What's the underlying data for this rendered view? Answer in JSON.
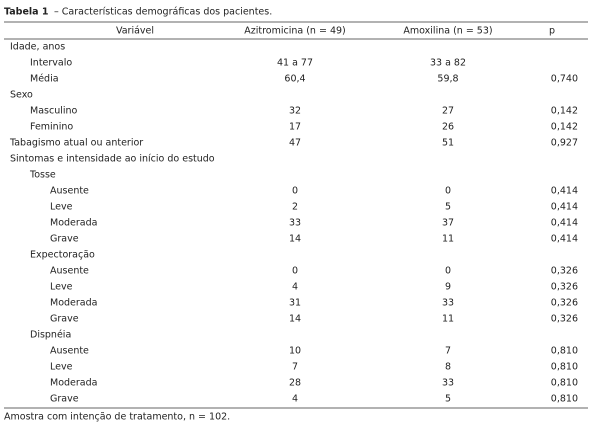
{
  "header": {
    "label": "Tabela 1",
    "title": "– Características demográficas dos pacientes."
  },
  "table": {
    "columns": [
      "Variável",
      "Azitromicina (n = 49)",
      "Amoxilina (n = 53)",
      "p"
    ],
    "rows": [
      {
        "label": "Idade, anos",
        "rows": [
          {
            "label": "Intervalo",
            "cells": [
              "41 a 77",
              "33 a 82",
              null
            ]
          },
          {
            "label": "Média",
            "cells": [
              "60,4",
              "59,8",
              "0,740"
            ]
          }
        ]
      },
      {
        "label": "Sexo",
        "rows": [
          {
            "label": "Masculino",
            "cells": [
              "32",
              "27",
              "0,142"
            ]
          },
          {
            "label": "Feminino",
            "cells": [
              "17",
              "26",
              "0,142"
            ]
          }
        ]
      },
      {
        "label": "Tabagismo atual ou anterior",
        "cells": [
          "47",
          "51",
          "0,927"
        ]
      },
      {
        "label": "Sintomas e intensidade ao início do estudo",
        "rows": [
          {
            "label": "Tosse",
            "rows": [
              {
                "label": "Ausente",
                "cells": [
                  "0",
                  "0",
                  "0,414"
                ]
              },
              {
                "label": "Leve",
                "cells": [
                  "2",
                  "5",
                  "0,414"
                ]
              },
              {
                "label": "Moderada",
                "cells": [
                  "33",
                  "37",
                  "0,414"
                ]
              },
              {
                "label": "Grave",
                "cells": [
                  "14",
                  "11",
                  "0,414"
                ]
              }
            ]
          },
          {
            "label": "Expectoração",
            "rows": [
              {
                "label": "Ausente",
                "cells": [
                  "0",
                  "0",
                  "0,326"
                ]
              },
              {
                "label": "Leve",
                "cells": [
                  "4",
                  "9",
                  "0,326"
                ]
              },
              {
                "label": "Moderada",
                "cells": [
                  "31",
                  "33",
                  "0,326"
                ]
              },
              {
                "label": "Grave",
                "cells": [
                  "14",
                  "11",
                  "0,326"
                ]
              }
            ]
          },
          {
            "label": "Dispnéia",
            "rows": [
              {
                "label": "Ausente",
                "cells": [
                  "10",
                  "7",
                  "0,810"
                ]
              },
              {
                "label": "Leve",
                "cells": [
                  "7",
                  "8",
                  "0,810"
                ]
              },
              {
                "label": "Moderada",
                "cells": [
                  "28",
                  "33",
                  "0,810"
                ]
              },
              {
                "label": "Grave",
                "cells": [
                  "4",
                  "5",
                  "0,810"
                ]
              }
            ]
          }
        ]
      }
    ]
  },
  "footnote": "Amostra com intenção de tratamento, n = 102."
}
